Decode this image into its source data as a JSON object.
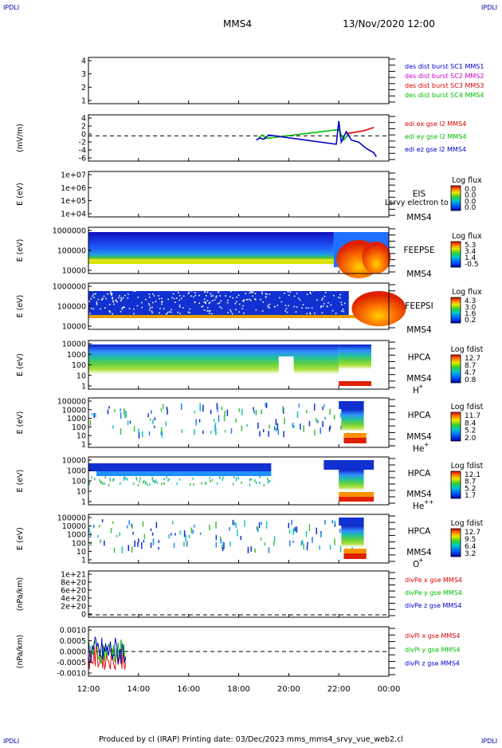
{
  "header": {
    "corner_left_top": "IPDLI",
    "corner_right_top": "IPDLI",
    "corner_left_bottom": "IPDLI",
    "corner_right_bottom": "IPDLI",
    "spacecraft": "MMS4",
    "datetime": "13/Nov/2020 12:00"
  },
  "footer": {
    "text": "Produced by cl (IRAP)   Printing date: 03/Dec/2023   mms_mms4_srvy_vue_web2.cl"
  },
  "x_axis": {
    "ticks": [
      "12:00",
      "14:00",
      "16:00",
      "18:00",
      "20:00",
      "22:00",
      "00:00"
    ]
  },
  "colors": {
    "blue": "#0000cc",
    "magenta": "#cc00cc",
    "red": "#dd0000",
    "green": "#00bb00"
  },
  "chart_data": [
    {
      "type": "line",
      "panel": "des_dist_burst",
      "ylim": [
        0.5,
        4.5
      ],
      "yticks": [
        "4",
        "3",
        "2",
        "1"
      ],
      "ylabel": "",
      "series": [
        {
          "name": "des dist burst SC1 MMS1",
          "color": "#0000cc",
          "points": []
        },
        {
          "name": "des dist burst SC2 MMS2",
          "color": "#cc00cc",
          "points": []
        },
        {
          "name": "des dist burst SC3 MMS3",
          "color": "#dd0000",
          "points": []
        },
        {
          "name": "des dist burst SC4 MMS4",
          "color": "#00bb00",
          "points": []
        }
      ]
    },
    {
      "type": "line",
      "panel": "edi_e_gse",
      "ylabel": "(mV/m)",
      "ylim": [
        -6,
        5
      ],
      "yticks": [
        "4",
        "2",
        "0",
        "-2",
        "-4",
        "-6"
      ],
      "series": [
        {
          "name": "edi ex gse l2 MMS4",
          "color": "#dd0000",
          "points": [
            [
              22.3,
              0.5
            ],
            [
              22.6,
              0.8
            ],
            [
              23.0,
              1.2
            ],
            [
              23.3,
              1.8
            ],
            [
              23.4,
              2.0
            ]
          ]
        },
        {
          "name": "edi ey gse l2 MMS4",
          "color": "#00bb00",
          "points": [
            [
              18.8,
              -0.4
            ],
            [
              18.95,
              0.2
            ],
            [
              19.1,
              -0.6
            ],
            [
              22.0,
              1.5
            ],
            [
              22.2,
              -1.0
            ],
            [
              22.4,
              0.5
            ]
          ]
        },
        {
          "name": "edi ez gse l2 MMS4",
          "color": "#0000cc",
          "points": [
            [
              18.7,
              -1.0
            ],
            [
              18.85,
              -0.5
            ],
            [
              19.0,
              -0.8
            ],
            [
              19.2,
              0.2
            ],
            [
              21.9,
              -2.0
            ],
            [
              22.0,
              3.5
            ],
            [
              22.1,
              -1.5
            ],
            [
              22.3,
              1.0
            ],
            [
              22.5,
              -1.0
            ],
            [
              22.8,
              -1.5
            ],
            [
              23.1,
              -3.0
            ],
            [
              23.4,
              -4.0
            ],
            [
              23.5,
              -5.0
            ]
          ]
        }
      ]
    },
    {
      "type": "heatmap",
      "panel": "EIS",
      "ylabel": "E (eV)",
      "yticks": [
        "1e+07",
        "1e+06",
        "1e+05",
        "1e+04"
      ],
      "label": "EIS",
      "sublabel": "MMS4",
      "overlay_text": "Lsrvy electron to",
      "colorbar": {
        "title": "Log flux",
        "ticks": [
          "0.0",
          "0.0",
          "0.0",
          "0.0"
        ]
      }
    },
    {
      "type": "heatmap",
      "panel": "FEEPSE",
      "ylabel": "E (eV)",
      "yticks": [
        "1000000",
        "100000",
        "10000"
      ],
      "label": "FEEPSE",
      "sublabel": "MMS4",
      "colorbar": {
        "title": "Log flux",
        "ticks": [
          "5.3",
          "3.4",
          "1.4",
          "-0.5"
        ]
      }
    },
    {
      "type": "heatmap",
      "panel": "FEEPSI",
      "ylabel": "E (eV)",
      "yticks": [
        "1000000",
        "100000",
        "10000"
      ],
      "label": "FEEPSI",
      "sublabel": "MMS4",
      "colorbar": {
        "title": "Log flux",
        "ticks": [
          "4.3",
          "3.0",
          "1.6",
          "0.2"
        ]
      }
    },
    {
      "type": "heatmap",
      "panel": "HPCA_H",
      "ylabel": "E (eV)",
      "yticks": [
        "10000",
        "1000",
        "100",
        "10",
        "1"
      ],
      "label": "HPCA",
      "sublabel": "MMS4",
      "species": "H",
      "species_sup": "+",
      "colorbar": {
        "title": "Log fdist",
        "ticks": [
          "12.7",
          "8.7",
          "4.7",
          "0.8"
        ]
      }
    },
    {
      "type": "heatmap",
      "panel": "HPCA_He",
      "ylabel": "E (eV)",
      "yticks": [
        "100000",
        "10000",
        "1000",
        "100",
        "10",
        "1"
      ],
      "label": "HPCA",
      "sublabel": "MMS4",
      "species": "He",
      "species_sup": "+",
      "colorbar": {
        "title": "Log fdist",
        "ticks": [
          "11.7",
          "8.4",
          "5.2",
          "2.0"
        ]
      }
    },
    {
      "type": "heatmap",
      "panel": "HPCA_He2",
      "ylabel": "E (eV)",
      "yticks": [
        "10000",
        "1000",
        "100",
        "10",
        "1"
      ],
      "label": "HPCA",
      "sublabel": "MMS4",
      "species": "He",
      "species_sup": "++",
      "colorbar": {
        "title": "Log fdist",
        "ticks": [
          "12.1",
          "8.7",
          "5.2",
          "1.7"
        ]
      }
    },
    {
      "type": "heatmap",
      "panel": "HPCA_O",
      "ylabel": "E (eV)",
      "yticks": [
        "100000",
        "10000",
        "1000",
        "100",
        "10",
        "1"
      ],
      "label": "HPCA",
      "sublabel": "MMS4",
      "species": "O",
      "species_sup": "+",
      "colorbar": {
        "title": "Log fdist",
        "ticks": [
          "12.7",
          "9.5",
          "6.4",
          "3.2"
        ]
      }
    },
    {
      "type": "line",
      "panel": "divPe",
      "ylabel": "(nPa/km)",
      "yticks": [
        "1e+21",
        "8e+20",
        "6e+20",
        "4e+20",
        "2e+20",
        "0"
      ],
      "ylim": [
        0,
        1e+21
      ],
      "series": [
        {
          "name": "divPe x gse MMS4",
          "color": "#dd0000",
          "points": []
        },
        {
          "name": "divPe y gse MMS4",
          "color": "#00bb00",
          "points": []
        },
        {
          "name": "divPe z gse MMS4",
          "color": "#0000cc",
          "points": []
        }
      ]
    },
    {
      "type": "line",
      "panel": "divPi",
      "ylabel": "(nPa/km)",
      "yticks": [
        "0.0010",
        "0.0005",
        "0.0000",
        "-0.0005",
        "-0.0010"
      ],
      "ylim": [
        -0.0012,
        0.0012
      ],
      "series": [
        {
          "name": "divPi x gse MMS4",
          "color": "#dd0000",
          "range": [
            12.0,
            13.5
          ]
        },
        {
          "name": "divPi y gse MMS4",
          "color": "#00bb00",
          "range": [
            12.0,
            13.5
          ]
        },
        {
          "name": "divPi z gse MMS4",
          "color": "#0000cc",
          "range": [
            12.0,
            13.5
          ]
        }
      ]
    }
  ]
}
